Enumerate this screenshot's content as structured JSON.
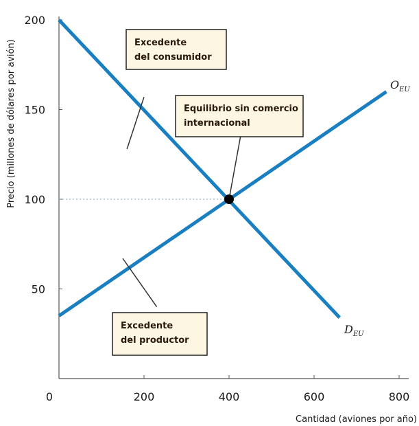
{
  "chart_data": {
    "type": "line",
    "xlabel": "Cantidad (aviones por año)",
    "ylabel": "Precio (millones de dólares por avión)",
    "xlim": [
      0,
      800
    ],
    "ylim": [
      0,
      200
    ],
    "x_ticks": [
      0,
      200,
      400,
      600,
      800
    ],
    "x_tick_labels": [
      "0",
      "200",
      "400",
      "600",
      "800"
    ],
    "y_ticks": [
      50,
      100,
      150,
      200
    ],
    "y_tick_labels": [
      "50",
      "100",
      "150",
      "200"
    ],
    "grid": false,
    "series": [
      {
        "name": "D",
        "subscript": "EU",
        "color": "#1a7fc1",
        "points": [
          [
            0,
            200
          ],
          [
            660,
            34
          ]
        ]
      },
      {
        "name": "O",
        "subscript": "EU",
        "color": "#1a7fc1",
        "points": [
          [
            0,
            35
          ],
          [
            770,
            160
          ]
        ]
      }
    ],
    "equilibrium": {
      "x": 400,
      "y": 100
    },
    "annotations": [
      {
        "id": "consumer-surplus",
        "lines": [
          "Excedente",
          "del consumidor"
        ],
        "pointer": [
          [
            200,
            157
          ],
          [
            160,
            128
          ]
        ]
      },
      {
        "id": "equilibrium",
        "lines": [
          "Equilibrio sin comercio",
          "internacional"
        ],
        "pointer": [
          [
            430,
            139
          ],
          [
            400,
            100
          ]
        ]
      },
      {
        "id": "producer-surplus",
        "lines": [
          "Excedente",
          "del productor"
        ],
        "pointer": [
          [
            150,
            67
          ],
          [
            230,
            40
          ]
        ]
      }
    ],
    "annotation_box_color": "#fdf6e3",
    "annotation_border_color": "#222222"
  }
}
